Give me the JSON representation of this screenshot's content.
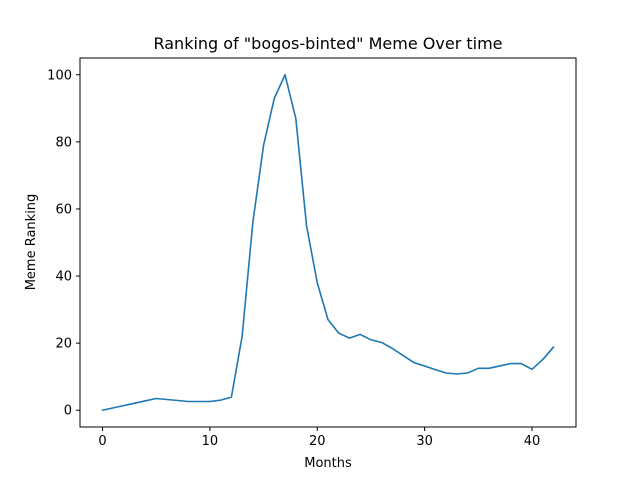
{
  "chart_data": {
    "type": "line",
    "title": "Ranking of \"bogos-binted\" Meme Over time",
    "xlabel": "Months",
    "ylabel": "Meme Ranking",
    "xlim": [
      -2.1,
      44.1
    ],
    "ylim": [
      -5,
      105
    ],
    "xticks": [
      0,
      10,
      20,
      30,
      40
    ],
    "yticks": [
      0,
      20,
      40,
      60,
      80,
      100
    ],
    "grid": false,
    "series": [
      {
        "color": "#1f77b4",
        "x": [
          0,
          1,
          2,
          3,
          4,
          5,
          6,
          7,
          8,
          9,
          10,
          11,
          12,
          13,
          14,
          15,
          16,
          17,
          18,
          19,
          20,
          21,
          22,
          23,
          24,
          25,
          26,
          27,
          28,
          29,
          30,
          31,
          32,
          33,
          34,
          35,
          36,
          37,
          38,
          39,
          40,
          41,
          42
        ],
        "y": [
          0,
          0.7,
          1.4,
          2.1,
          2.8,
          3.5,
          3.2,
          2.9,
          2.6,
          2.6,
          2.6,
          3.0,
          3.9,
          22,
          56,
          79,
          93,
          100,
          87,
          55,
          38,
          27,
          23,
          21.5,
          22.6,
          21,
          20.2,
          18.4,
          16.3,
          14.2,
          13.2,
          12.1,
          11.1,
          10.8,
          11.1,
          12.5,
          12.5,
          13.2,
          13.9,
          13.9,
          12.2,
          15.1,
          18.8
        ]
      }
    ]
  }
}
